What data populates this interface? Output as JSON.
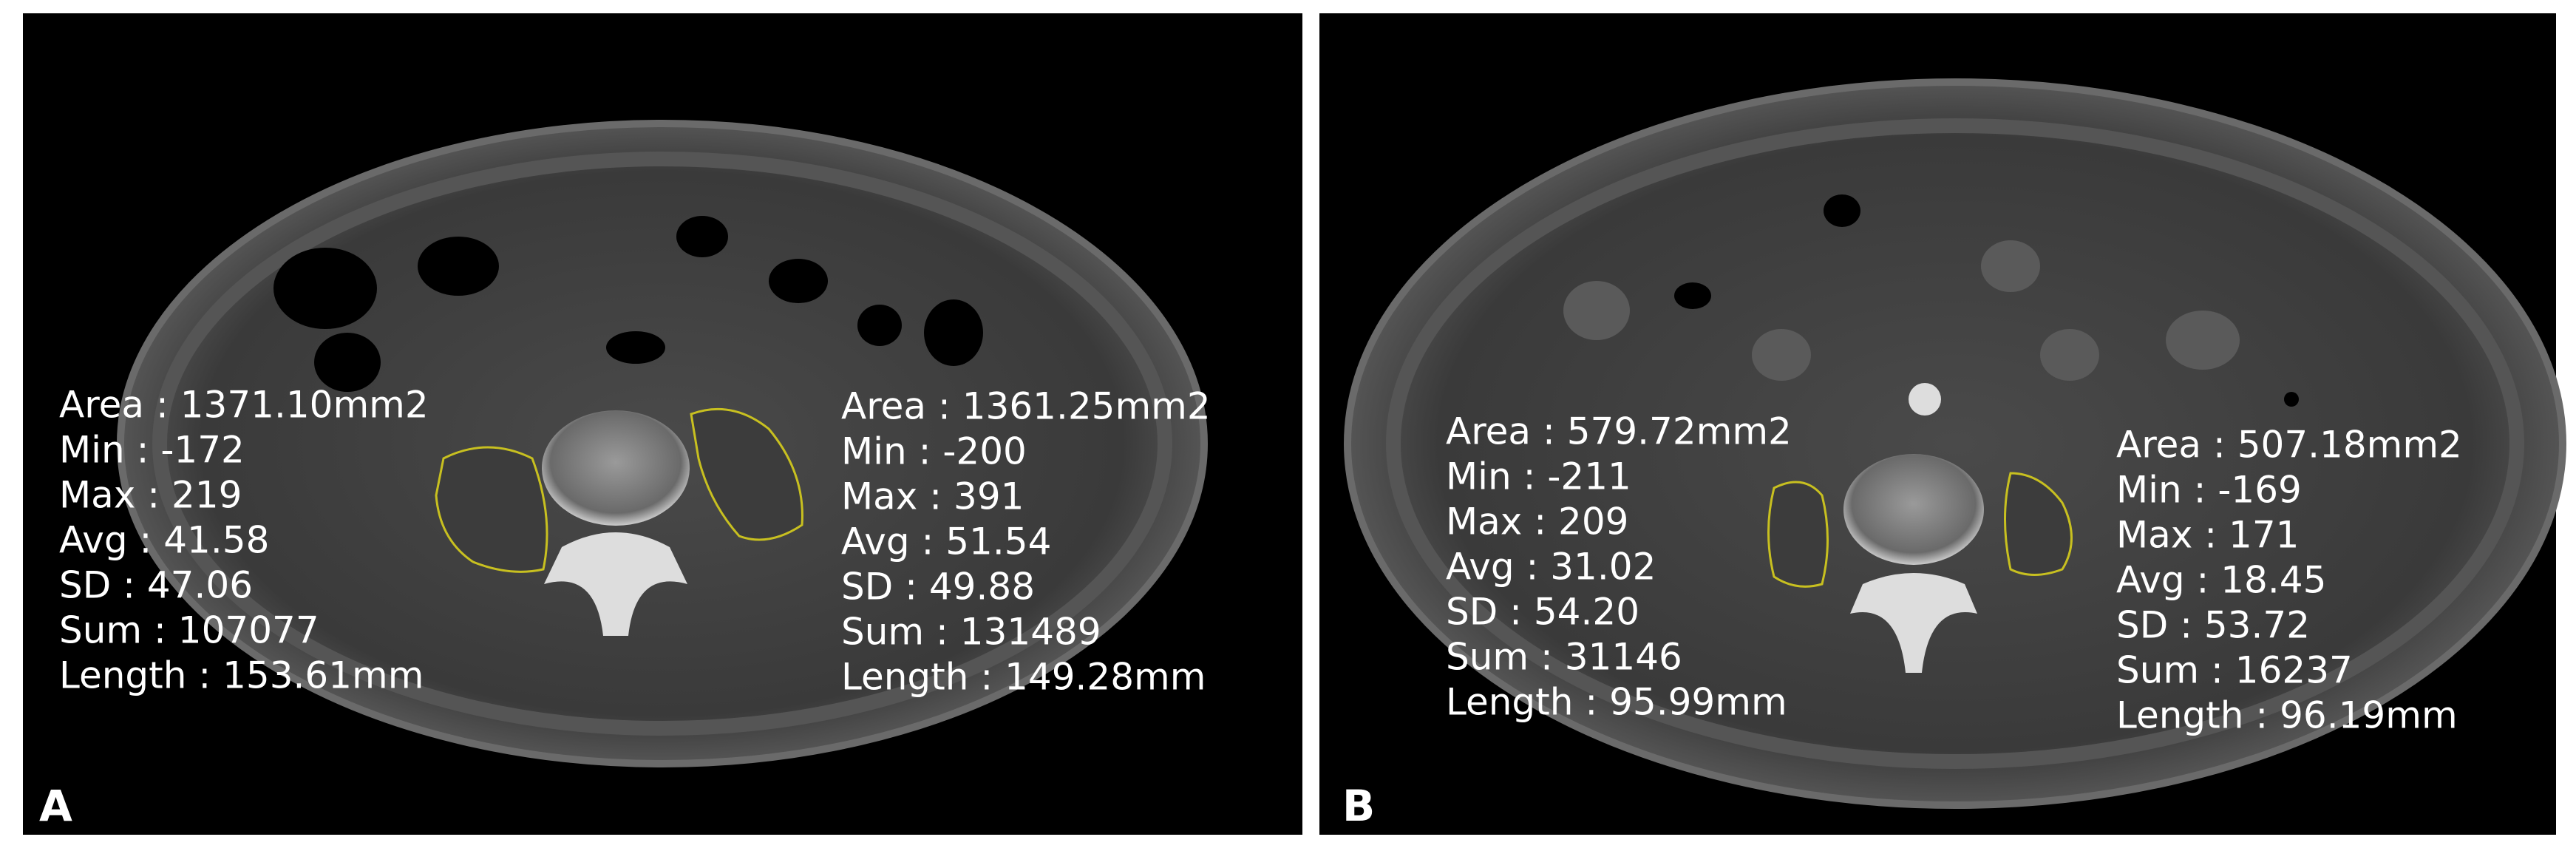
{
  "panels": [
    {
      "label": "A",
      "rois": [
        {
          "lines": [
            "Area : 1371.10mm2",
            "Min : -172",
            "Max : 219",
            "Avg : 41.58",
            "SD : 47.06",
            "Sum : 107077",
            "Length : 153.61mm"
          ]
        },
        {
          "lines": [
            "Area : 1361.25mm2",
            "Min : -200",
            "Max : 391",
            "Avg : 51.54",
            "SD : 49.88",
            "Sum : 131489",
            "Length : 149.28mm"
          ]
        }
      ]
    },
    {
      "label": "B",
      "rois": [
        {
          "lines": [
            "Area : 579.72mm2",
            "Min : -211",
            "Max : 209",
            "Avg : 31.02",
            "SD : 54.20",
            "Sum : 31146",
            "Length : 95.99mm"
          ]
        },
        {
          "lines": [
            "Area : 507.18mm2",
            "Min : -169",
            "Max : 171",
            "Avg : 18.45",
            "SD : 53.72",
            "Sum : 16237",
            "Length : 96.19mm"
          ]
        }
      ]
    }
  ]
}
